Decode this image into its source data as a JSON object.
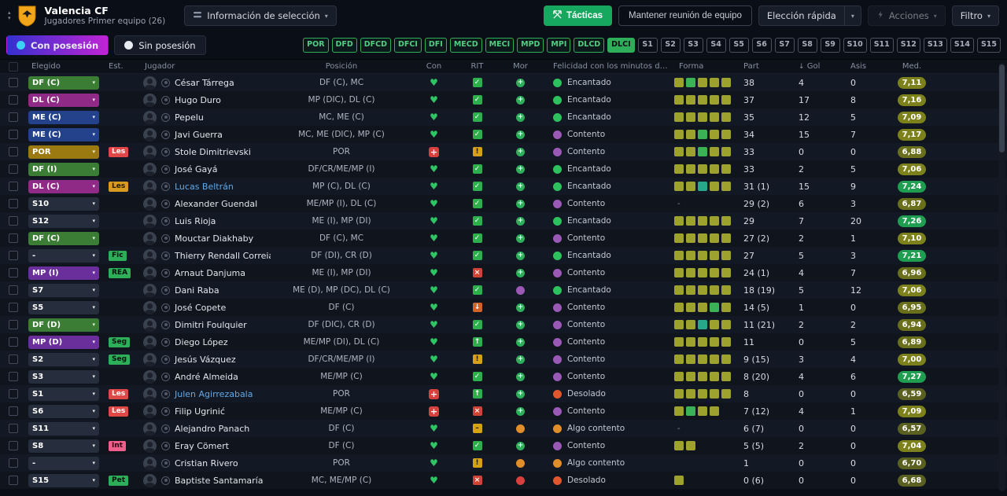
{
  "topbar": {
    "club_name": "Valencia CF",
    "subtitle": "Jugadores Primer equipo (26)",
    "selection_info_label": "Información de selección",
    "tactics_label": "Tácticas",
    "meeting_label": "Mantener reunión de equipo",
    "quick_pick_label": "Elección rápida",
    "actions_label": "Acciones",
    "filter_label": "Filtro"
  },
  "toolbar": {
    "tabs": [
      {
        "label": "Con posesión",
        "active": true
      },
      {
        "label": "Sin posesión",
        "active": false
      }
    ],
    "position_buttons": [
      {
        "label": "POR",
        "type": "pos"
      },
      {
        "label": "DFD",
        "type": "pos"
      },
      {
        "label": "DFCD",
        "type": "pos"
      },
      {
        "label": "DFCI",
        "type": "pos"
      },
      {
        "label": "DFI",
        "type": "pos"
      },
      {
        "label": "MECD",
        "type": "pos"
      },
      {
        "label": "MECI",
        "type": "pos"
      },
      {
        "label": "MPD",
        "type": "pos"
      },
      {
        "label": "MPI",
        "type": "pos"
      },
      {
        "label": "DLCD",
        "type": "pos"
      },
      {
        "label": "DLCI",
        "type": "pos-active"
      },
      {
        "label": "S1",
        "type": "sub"
      },
      {
        "label": "S2",
        "type": "sub"
      },
      {
        "label": "S3",
        "type": "sub"
      },
      {
        "label": "S4",
        "type": "sub"
      },
      {
        "label": "S5",
        "type": "sub"
      },
      {
        "label": "S6",
        "type": "sub"
      },
      {
        "label": "S7",
        "type": "sub"
      },
      {
        "label": "S8",
        "type": "sub"
      },
      {
        "label": "S9",
        "type": "sub"
      },
      {
        "label": "S10",
        "type": "sub"
      },
      {
        "label": "S11",
        "type": "sub"
      },
      {
        "label": "S12",
        "type": "sub"
      },
      {
        "label": "S13",
        "type": "sub"
      },
      {
        "label": "S14",
        "type": "sub"
      },
      {
        "label": "S15",
        "type": "sub"
      }
    ]
  },
  "table": {
    "columns": {
      "elegido": "Elegido",
      "est": "Est.",
      "jugador": "Jugador",
      "posicion": "Posición",
      "con": "Con",
      "rit": "RIT",
      "mor": "Mor",
      "felicidad": "Felicidad con los minutos de jue...",
      "forma": "Forma",
      "part": "Part",
      "gol": "Gol",
      "asis": "Asis",
      "med": "Med."
    },
    "sort_indicator": "↓",
    "no_form": "-",
    "rows": [
      {
        "sel": "DF (C)",
        "selc": "df",
        "est": "",
        "estc": "",
        "name": "César Tárrega",
        "link": false,
        "pos": "DF (C), MC",
        "con": "fit",
        "rit": "check",
        "mor": "g",
        "fel": "Encantado",
        "forma": "ogooo",
        "part": "38",
        "gol": "4",
        "asis": "0",
        "med": "7,11"
      },
      {
        "sel": "DL (C)",
        "selc": "dl",
        "est": "",
        "estc": "",
        "name": "Hugo Duro",
        "link": false,
        "pos": "MP (DIC), DL (C)",
        "con": "fit",
        "rit": "check",
        "mor": "g",
        "fel": "Encantado",
        "forma": "ooooo",
        "part": "37",
        "gol": "17",
        "asis": "8",
        "med": "7,16"
      },
      {
        "sel": "ME (C)",
        "selc": "me",
        "est": "",
        "estc": "",
        "name": "Pepelu",
        "link": false,
        "pos": "MC, ME (C)",
        "con": "fit",
        "rit": "check",
        "mor": "g",
        "fel": "Encantado",
        "forma": "ooooo",
        "part": "35",
        "gol": "12",
        "asis": "5",
        "med": "7,09"
      },
      {
        "sel": "ME (C)",
        "selc": "me",
        "est": "",
        "estc": "",
        "name": "Javi Guerra",
        "link": false,
        "pos": "MC, ME (DIC), MP (C)",
        "con": "fit",
        "rit": "check",
        "mor": "g",
        "fel": "Contento",
        "forma": "oogoo",
        "part": "34",
        "gol": "15",
        "asis": "7",
        "med": "7,17"
      },
      {
        "sel": "POR",
        "selc": "por",
        "est": "Les",
        "estc": "red",
        "name": "Stole Dimitrievski",
        "link": false,
        "pos": "POR",
        "con": "injured",
        "rit": "warn",
        "mor": "g",
        "fel": "Contento",
        "forma": "oogoo",
        "part": "33",
        "gol": "0",
        "asis": "0",
        "med": "6,88"
      },
      {
        "sel": "DF (I)",
        "selc": "df",
        "est": "",
        "estc": "",
        "name": "José Gayá",
        "link": false,
        "pos": "DF/CR/ME/MP (I)",
        "con": "fit",
        "rit": "check",
        "mor": "g",
        "fel": "Encantado",
        "forma": "ooooo",
        "part": "33",
        "gol": "2",
        "asis": "5",
        "med": "7,06"
      },
      {
        "sel": "DL (C)",
        "selc": "dl",
        "est": "Les",
        "estc": "yellow",
        "name": "Lucas Beltrán",
        "link": true,
        "pos": "MP (C), DL (C)",
        "con": "fit",
        "rit": "check",
        "mor": "g",
        "fel": "Encantado",
        "forma": "ootoo",
        "part": "31 (1)",
        "gol": "15",
        "asis": "9",
        "med": "7,24"
      },
      {
        "sel": "S10",
        "selc": "none",
        "est": "",
        "estc": "",
        "name": "Alexander Guendal",
        "link": false,
        "pos": "ME/MP (I), DL (C)",
        "con": "fit",
        "rit": "check",
        "mor": "g",
        "fel": "Contento",
        "forma": null,
        "part": "29 (2)",
        "gol": "6",
        "asis": "3",
        "med": "6,87"
      },
      {
        "sel": "S12",
        "selc": "none",
        "est": "",
        "estc": "",
        "name": "Luis Rioja",
        "link": false,
        "pos": "ME (I), MP (DI)",
        "con": "fit",
        "rit": "check",
        "mor": "g",
        "fel": "Encantado",
        "forma": "ooooo",
        "part": "29",
        "gol": "7",
        "asis": "20",
        "med": "7,26"
      },
      {
        "sel": "DF (C)",
        "selc": "df",
        "est": "",
        "estc": "",
        "name": "Mouctar Diakhaby",
        "link": false,
        "pos": "DF (C), MC",
        "con": "fit",
        "rit": "check",
        "mor": "g",
        "fel": "Contento",
        "forma": "ooooo",
        "part": "27 (2)",
        "gol": "2",
        "asis": "1",
        "med": "7,10"
      },
      {
        "sel": "-",
        "selc": "none",
        "est": "Fic",
        "estc": "green",
        "name": "Thierry Rendall Correia",
        "link": false,
        "pos": "DF (DI), CR (D)",
        "con": "fit",
        "rit": "check",
        "mor": "g",
        "fel": "Encantado",
        "forma": "ooooo",
        "part": "27",
        "gol": "5",
        "asis": "3",
        "med": "7,21"
      },
      {
        "sel": "MP (I)",
        "selc": "mp",
        "est": "REA",
        "estc": "green",
        "name": "Arnaut Danjuma",
        "link": false,
        "pos": "ME (I), MP (DI)",
        "con": "fit",
        "rit": "cross",
        "mor": "g",
        "fel": "Contento",
        "forma": "ooooo",
        "part": "24 (1)",
        "gol": "4",
        "asis": "7",
        "med": "6,96"
      },
      {
        "sel": "S7",
        "selc": "none",
        "est": "",
        "estc": "",
        "name": "Dani Raba",
        "link": false,
        "pos": "ME (D), MP (DC), DL (C)",
        "con": "fit",
        "rit": "check",
        "mor": "p",
        "fel": "Encantado",
        "forma": "ooooo",
        "part": "18 (19)",
        "gol": "5",
        "asis": "12",
        "med": "7,06"
      },
      {
        "sel": "S5",
        "selc": "none",
        "est": "",
        "estc": "",
        "name": "José Copete",
        "link": false,
        "pos": "DF (C)",
        "con": "fit",
        "rit": "down",
        "mor": "g",
        "fel": "Contento",
        "forma": "ooogo",
        "part": "14 (5)",
        "gol": "1",
        "asis": "0",
        "med": "6,95"
      },
      {
        "sel": "DF (D)",
        "selc": "df",
        "est": "",
        "estc": "",
        "name": "Dimitri Foulquier",
        "link": false,
        "pos": "DF (DIC), CR (D)",
        "con": "fit",
        "rit": "check",
        "mor": "g",
        "fel": "Contento",
        "forma": "ootoo",
        "part": "11 (21)",
        "gol": "2",
        "asis": "2",
        "med": "6,94"
      },
      {
        "sel": "MP (D)",
        "selc": "mp",
        "est": "Seg",
        "estc": "green",
        "name": "Diego López",
        "link": false,
        "pos": "ME/MP (DI), DL (C)",
        "con": "fit",
        "rit": "up",
        "mor": "g",
        "fel": "Contento",
        "forma": "ooooo",
        "part": "11",
        "gol": "0",
        "asis": "5",
        "med": "6,89"
      },
      {
        "sel": "S2",
        "selc": "none",
        "est": "Seg",
        "estc": "green",
        "name": "Jesús Vázquez",
        "link": false,
        "pos": "DF/CR/ME/MP (I)",
        "con": "fit",
        "rit": "warn",
        "mor": "g",
        "fel": "Contento",
        "forma": "ooooo",
        "part": "9 (15)",
        "gol": "3",
        "asis": "4",
        "med": "7,00"
      },
      {
        "sel": "S3",
        "selc": "none",
        "est": "",
        "estc": "",
        "name": "André Almeida",
        "link": false,
        "pos": "ME/MP (C)",
        "con": "fit",
        "rit": "check",
        "mor": "g",
        "fel": "Contento",
        "forma": "ooooo",
        "part": "8 (20)",
        "gol": "4",
        "asis": "6",
        "med": "7,27"
      },
      {
        "sel": "S1",
        "selc": "none",
        "est": "Les",
        "estc": "red",
        "name": "Julen Agirrezabala",
        "link": true,
        "pos": "POR",
        "con": "injured",
        "rit": "up",
        "mor": "g",
        "fel": "Desolado",
        "forma": "ooooo",
        "part": "8",
        "gol": "0",
        "asis": "0",
        "med": "6,59"
      },
      {
        "sel": "S6",
        "selc": "none",
        "est": "Les",
        "estc": "red",
        "name": "Filip Ugrinić",
        "link": false,
        "pos": "ME/MP (C)",
        "con": "injured",
        "rit": "cross",
        "mor": "g",
        "fel": "Contento",
        "forma": "ogoo",
        "part": "7 (12)",
        "gol": "4",
        "asis": "1",
        "med": "7,09"
      },
      {
        "sel": "S11",
        "selc": "none",
        "est": "",
        "estc": "",
        "name": "Alejandro Panach",
        "link": false,
        "pos": "DF (C)",
        "con": "fit",
        "rit": "dash",
        "mor": "o",
        "fel": "Algo contento",
        "forma": null,
        "part": "6 (7)",
        "gol": "0",
        "asis": "0",
        "med": "6,57"
      },
      {
        "sel": "S8",
        "selc": "none",
        "est": "Int",
        "estc": "pink",
        "name": "Eray Cömert",
        "link": false,
        "pos": "DF (C)",
        "con": "fit",
        "rit": "check",
        "mor": "g",
        "fel": "Contento",
        "forma": "oo",
        "part": "5 (5)",
        "gol": "2",
        "asis": "0",
        "med": "7,04"
      },
      {
        "sel": "-",
        "selc": "none",
        "est": "",
        "estc": "",
        "name": "Cristian Rivero",
        "link": false,
        "pos": "POR",
        "con": "fit",
        "rit": "warn",
        "mor": "o",
        "fel": "Algo contento",
        "forma": "",
        "part": "1",
        "gol": "0",
        "asis": "0",
        "med": "6,70"
      },
      {
        "sel": "S15",
        "selc": "none",
        "est": "Pet",
        "estc": "green",
        "name": "Baptiste Santamaría",
        "link": false,
        "pos": "MC, ME/MP (C)",
        "con": "fit",
        "rit": "cross",
        "mor": "r",
        "fel": "Desolado",
        "forma": "o",
        "part": "0 (6)",
        "gol": "0",
        "asis": "0",
        "med": "6,68"
      }
    ]
  },
  "colors": {
    "accent_green": "#17a85f",
    "tab_gradient_start": "#3530cf",
    "tab_gradient_end": "#c024d4",
    "sel": {
      "df": "#3c7d35",
      "dl": "#8f2b86",
      "me": "#24418c",
      "mp": "#6b2f9c",
      "por": "#9c7a12",
      "none": "#262d3c"
    },
    "rit": {
      "check": "#2fae4e",
      "warn": "#d6a215",
      "cross": "#cf4436",
      "up": "#2fae4e",
      "dash": "#d6a215",
      "down": "#d0622a"
    },
    "mor": {
      "g": "#2fae5a",
      "p": "#9b59b6",
      "o": "#df8e2a",
      "r": "#d84040"
    },
    "fel": {
      "Encantado": "#2dc25e",
      "Contento": "#9b59b6",
      "Algo contento": "#df8e2a",
      "Desolado": "#e0572e"
    },
    "forma": {
      "o": "#9da22f",
      "g": "#3cb257",
      "t": "#28a88b"
    },
    "heart": "#2fc466",
    "injury": "#d84040",
    "rating_high": "#1f9d50",
    "rating_mid": "#7c811c",
    "rating_low": "#6a6f1b",
    "rating_poor": "#5a6120"
  }
}
